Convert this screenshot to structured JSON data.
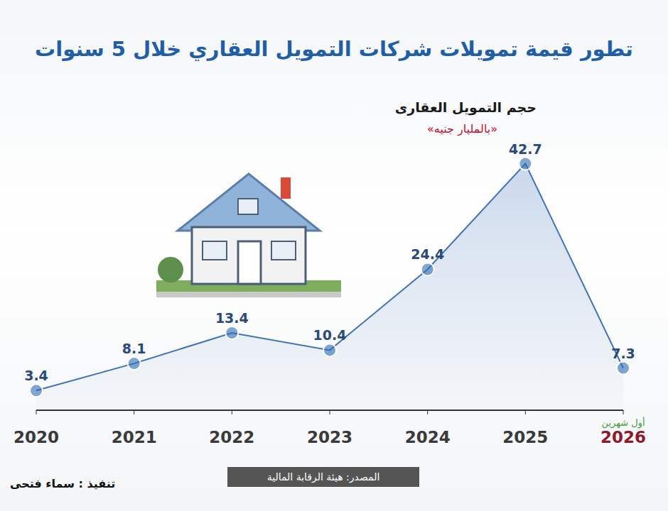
{
  "chart_data": {
    "type": "line",
    "title": "تطور قيمة تمويلات شركات التمويل العقاري خلال 5 سنوات",
    "subtitle": "حجم التمويل العقارى",
    "ylabel": "«بالمليار جنيه»",
    "annotation": "أول شهرين",
    "source": "المصدر: هيئة الرقابة المالية",
    "credit": "تنفيذ : سماء فتحى",
    "categories": [
      "2020",
      "2021",
      "2022",
      "2023",
      "2024",
      "2025",
      "2026"
    ],
    "values": [
      3.4,
      8.1,
      13.4,
      10.4,
      24.4,
      42.7,
      7.3
    ],
    "color": "#3f73b8",
    "ylim": [
      0,
      44
    ],
    "grid": false,
    "data_labels": true,
    "tick_labels": "x",
    "marker": "circle"
  }
}
